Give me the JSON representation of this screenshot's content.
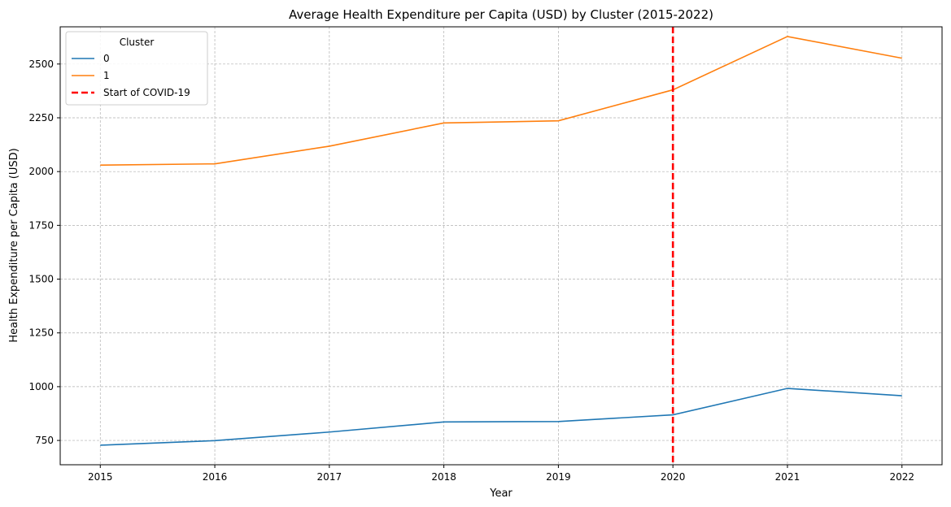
{
  "chart_data": {
    "type": "line",
    "title": "Average Health Expenditure per Capita (USD) by Cluster (2015-2022)",
    "xlabel": "Year",
    "ylabel": "Health Expenditure per Capita (USD)",
    "x": [
      2015,
      2016,
      2017,
      2018,
      2019,
      2020,
      2021,
      2022
    ],
    "xlim": [
      2014.65,
      2022.35
    ],
    "ylim": [
      637,
      2673
    ],
    "yticks": [
      750,
      1000,
      1250,
      1500,
      1750,
      2000,
      2250,
      2500
    ],
    "grid": true,
    "legend": {
      "title": "Cluster",
      "placement": "top-left"
    },
    "series": [
      {
        "name": "0",
        "color": "#1f77b4",
        "values": [
          728,
          749,
          789,
          836,
          838,
          869,
          992,
          958
        ]
      },
      {
        "name": "1",
        "color": "#ff7f0e",
        "values": [
          2030,
          2036,
          2118,
          2226,
          2236,
          2380,
          2628,
          2527
        ]
      }
    ],
    "reference_lines": [
      {
        "label": "Start of COVID-19",
        "x": 2020,
        "color": "#ff0000",
        "style": "dashed"
      }
    ]
  }
}
